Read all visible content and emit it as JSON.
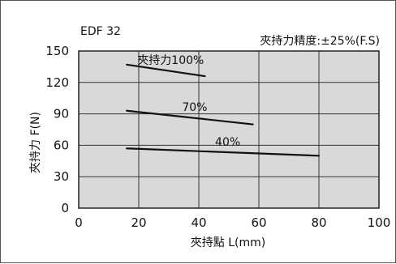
{
  "chart_data": {
    "type": "line",
    "model": "EDF 32",
    "title": "EDF 32",
    "note": "夾持力精度:±25%(F.S)",
    "xlabel": "夾持點 L(mm)",
    "ylabel": "夾持力 F(N)",
    "xlim": [
      0,
      100
    ],
    "ylim": [
      0,
      150
    ],
    "xticks": [
      0,
      20,
      40,
      60,
      80,
      100
    ],
    "yticks": [
      0,
      30,
      60,
      90,
      120,
      150
    ],
    "grid": true,
    "plot_background": "#d9d9d9",
    "series": [
      {
        "name": "夾持力100%",
        "x": [
          16,
          42
        ],
        "y": [
          137,
          126
        ]
      },
      {
        "name": "70%",
        "x": [
          16,
          58
        ],
        "y": [
          93,
          80
        ]
      },
      {
        "name": "40%",
        "x": [
          16,
          80
        ],
        "y": [
          57,
          50
        ]
      }
    ]
  }
}
